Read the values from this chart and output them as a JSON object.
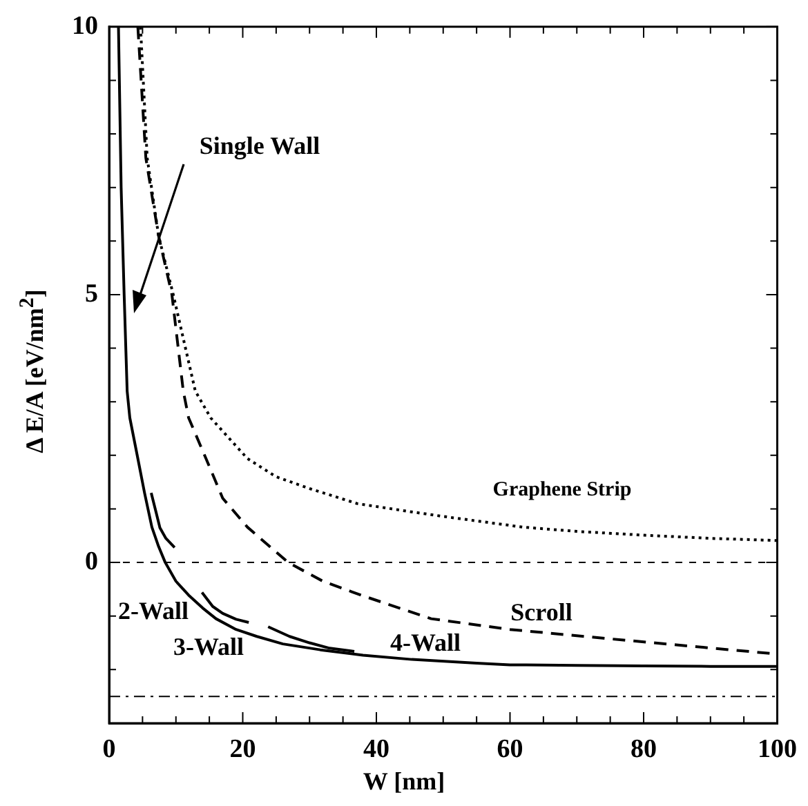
{
  "chart_data": {
    "type": "line",
    "xlabel": "W [nm]",
    "ylabel": "Δ E/A [eV/nm$^{2}$]",
    "xlim": [
      0,
      100
    ],
    "ylim": [
      -3,
      10
    ],
    "xticks": [
      0,
      {
        "value": 5,
        "label": null
      },
      {
        "value": 10,
        "label": null
      },
      {
        "value": 15,
        "label": null
      },
      20,
      {
        "value": 25,
        "label": null
      },
      {
        "value": 30,
        "label": null
      },
      {
        "value": 35,
        "label": null
      },
      40,
      {
        "value": 45,
        "label": null
      },
      {
        "value": 50,
        "label": null
      },
      {
        "value": 55,
        "label": null
      },
      60,
      {
        "value": 65,
        "label": null
      },
      {
        "value": 70,
        "label": null
      },
      {
        "value": 75,
        "label": null
      },
      80,
      {
        "value": 85,
        "label": null
      },
      {
        "value": 90,
        "label": null
      },
      {
        "value": 95,
        "label": null
      },
      100
    ],
    "yticks": [
      {
        "value": -3,
        "label": null
      },
      {
        "value": -2,
        "label": null
      },
      {
        "value": -1,
        "label": null
      },
      0,
      {
        "value": 1,
        "label": null
      },
      {
        "value": 2,
        "label": null
      },
      {
        "value": 3,
        "label": null
      },
      {
        "value": 4,
        "label": null
      },
      5,
      {
        "value": 6,
        "label": null
      },
      {
        "value": 7,
        "label": null
      },
      {
        "value": 8,
        "label": null
      },
      {
        "value": 9,
        "label": null
      },
      10
    ],
    "marker": "none",
    "series": [
      {
        "color": "#000000",
        "line_style": "solid",
        "x": [
          1.4,
          1.8,
          2.25,
          2.7,
          3.1,
          4.3,
          5.3,
          6.4,
          7.4,
          8.4,
          10,
          11.9,
          14,
          16,
          19,
          22.1,
          26,
          31.6,
          38,
          45.3,
          55,
          60,
          70,
          80,
          90,
          100
        ],
        "values": [
          10,
          7,
          5,
          3.2,
          2.7,
          1.94,
          1.3,
          0.66,
          0.3,
          0,
          -0.35,
          -0.61,
          -0.85,
          -1.05,
          -1.25,
          -1.38,
          -1.52,
          -1.63,
          -1.73,
          -1.81,
          -1.88,
          -1.91,
          -1.92,
          -1.93,
          -1.94,
          -1.94
        ]
      },
      {
        "color": "#000000",
        "line_style": "solid",
        "x": [
          6.3,
          7,
          7.6,
          8.5,
          9.8
        ],
        "values": [
          1.3,
          0.95,
          0.65,
          0.45,
          0.28
        ]
      },
      {
        "color": "#000000",
        "line_style": "solid",
        "x": [
          13.9,
          15.5,
          17,
          19,
          20.9
        ],
        "values": [
          -0.56,
          -0.82,
          -0.95,
          -1.06,
          -1.12
        ]
      },
      {
        "color": "#000000",
        "line_style": "solid",
        "x": [
          23.8,
          27,
          30,
          33,
          36.7
        ],
        "values": [
          -1.2,
          -1.38,
          -1.5,
          -1.6,
          -1.66
        ]
      },
      {
        "color": "#000000",
        "line_style": "dashed",
        "x": [
          4.3,
          5.5,
          7.4,
          9.4,
          11.1,
          11.9,
          14.5,
          17,
          20.7,
          26.8,
          32,
          37.7,
          48.2,
          60,
          75.4,
          100
        ],
        "values": [
          10,
          7.55,
          6.1,
          5,
          3.2,
          2.7,
          1.94,
          1.2,
          0.66,
          0,
          -0.35,
          -0.61,
          -1.05,
          -1.25,
          -1.43,
          -1.71
        ]
      },
      {
        "color": "#000000",
        "line_style": "dotted",
        "x": [
          4.7,
          5.7,
          7.4,
          9.6,
          12.9,
          15.2,
          20.7,
          25,
          30,
          37.1,
          45,
          50,
          61.9,
          70,
          80,
          90,
          100
        ],
        "values": [
          10,
          7.55,
          6.1,
          5,
          3.2,
          2.7,
          1.94,
          1.6,
          1.38,
          1.1,
          0.95,
          0.86,
          0.66,
          0.58,
          0.51,
          0.45,
          0.41
        ]
      }
    ],
    "ref_lines": [
      {
        "axis": "y",
        "value": 0,
        "line_style": "dashed",
        "color": "#000000"
      },
      {
        "axis": "y",
        "value": -2.5,
        "line_style": "dashdot",
        "color": "#000000"
      }
    ],
    "annotations": [
      "Single Wall",
      "2-Wall",
      "3-Wall",
      "4-Wall",
      "Scroll",
      "Graphene Strip"
    ]
  }
}
